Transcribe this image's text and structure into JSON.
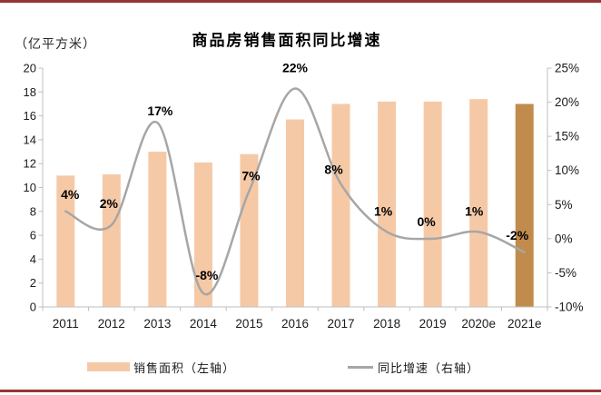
{
  "page": {
    "rule_color": "#953735",
    "background": "#FFFFFF"
  },
  "chart": {
    "title": "商品房销售面积同比增速",
    "unit_label": "（亿平方米）",
    "legend": [
      {
        "label": "销售面积（左轴）",
        "type": "bar",
        "color": "#F6C9A6"
      },
      {
        "label": "同比增速（右轴）",
        "type": "line",
        "color": "#A6A6A6"
      }
    ]
  },
  "chart_data": {
    "type": "combo",
    "title": "商品房销售面积同比增速",
    "categories": [
      "2011",
      "2012",
      "2013",
      "2014",
      "2015",
      "2016",
      "2017",
      "2018",
      "2019",
      "2020e",
      "2021e"
    ],
    "series": [
      {
        "name": "销售面积（左轴）",
        "type": "bar",
        "axis": "left",
        "values": [
          11.0,
          11.1,
          13.0,
          12.1,
          12.8,
          15.7,
          17.0,
          17.2,
          17.2,
          17.4,
          17.0
        ],
        "color": "#F6C9A6",
        "highlight_index": 10,
        "highlight_color": "#C18C4B"
      },
      {
        "name": "同比增速（右轴）",
        "type": "line",
        "axis": "right",
        "values": [
          4,
          2,
          17,
          -8,
          7,
          22,
          8,
          1,
          0,
          1,
          -2
        ],
        "point_labels": [
          "4%",
          "2%",
          "17%",
          "-8%",
          "7%",
          "22%",
          "8%",
          "1%",
          "0%",
          "1%",
          "-2%"
        ],
        "color": "#A6A6A6"
      }
    ],
    "left_axis": {
      "unit": "亿平方米",
      "min": 0,
      "max": 20,
      "step": 2,
      "tick_labels": [
        "20",
        "18",
        "16",
        "14",
        "12",
        "10",
        "8",
        "6",
        "4",
        "2",
        "0"
      ]
    },
    "right_axis": {
      "unit": "%",
      "min": -10,
      "max": 25,
      "step": 5,
      "tick_labels": [
        "25%",
        "20%",
        "15%",
        "10%",
        "5%",
        "0%",
        "-5%",
        "-10%"
      ]
    },
    "grid": false,
    "legend_position": "bottom",
    "axis_color": "#BFBFBF",
    "label_color": "#1a1a1a"
  }
}
